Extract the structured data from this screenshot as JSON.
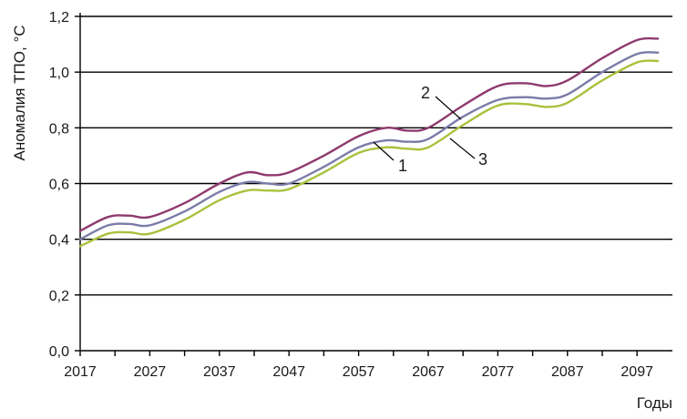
{
  "chart_data": {
    "type": "line",
    "ylabel": "Аномалия ТПО, °С",
    "xlabel": "Годы",
    "xlim": [
      2017,
      2100
    ],
    "ylim": [
      0,
      1.2
    ],
    "x_ticks": [
      "2017",
      "2027",
      "2037",
      "2047",
      "2057",
      "2067",
      "2077",
      "2087",
      "2097"
    ],
    "y_ticks": [
      "0,0",
      "0,2",
      "0,4",
      "0,6",
      "0,8",
      "1,0",
      "1,2"
    ],
    "grid": "horizontal",
    "x": [
      2017,
      2021,
      2024,
      2027,
      2032,
      2037,
      2041,
      2044,
      2047,
      2052,
      2057,
      2061,
      2064,
      2067,
      2072,
      2077,
      2081,
      2084,
      2087,
      2092,
      2097,
      2100
    ],
    "series": [
      {
        "name": "1",
        "color": "#7b7ba8",
        "values": [
          0.4,
          0.45,
          0.455,
          0.45,
          0.5,
          0.57,
          0.605,
          0.6,
          0.6,
          0.66,
          0.73,
          0.755,
          0.75,
          0.76,
          0.84,
          0.9,
          0.91,
          0.905,
          0.92,
          1.0,
          1.065,
          1.07
        ]
      },
      {
        "name": "2",
        "color": "#8e3a6e",
        "values": [
          0.43,
          0.48,
          0.485,
          0.48,
          0.53,
          0.6,
          0.64,
          0.63,
          0.64,
          0.7,
          0.77,
          0.8,
          0.79,
          0.8,
          0.88,
          0.95,
          0.96,
          0.95,
          0.97,
          1.05,
          1.115,
          1.12
        ]
      },
      {
        "name": "3",
        "color": "#a8c23c",
        "values": [
          0.375,
          0.42,
          0.425,
          0.42,
          0.47,
          0.54,
          0.575,
          0.575,
          0.58,
          0.64,
          0.71,
          0.73,
          0.725,
          0.73,
          0.81,
          0.88,
          0.885,
          0.875,
          0.89,
          0.97,
          1.035,
          1.04
        ]
      }
    ],
    "annotations": [
      {
        "text": "1",
        "series": "1",
        "x": 2064
      },
      {
        "text": "2",
        "series": "2",
        "x": 2070
      },
      {
        "text": "3",
        "series": "3",
        "x": 2070
      }
    ]
  }
}
